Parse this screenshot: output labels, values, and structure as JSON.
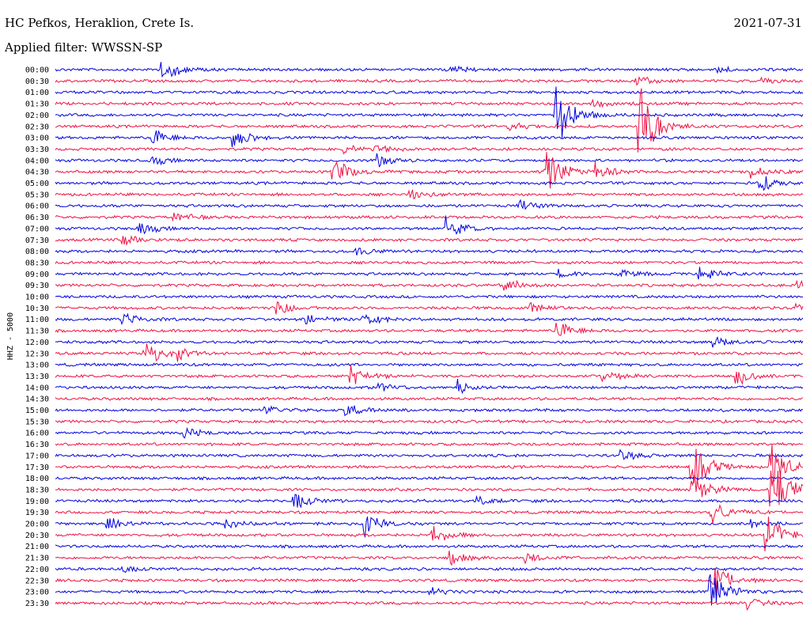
{
  "header": {
    "station": "HC Pefkos, Heraklion, Crete Is.",
    "date": "2021-07-31",
    "filter": "Applied filter: WWSSN-SP"
  },
  "chart_data": {
    "type": "line",
    "ylabel": "HHZ - 5000",
    "row_labels": [
      "00:00",
      "00:30",
      "01:00",
      "01:30",
      "02:00",
      "02:30",
      "03:00",
      "03:30",
      "04:00",
      "04:30",
      "05:00",
      "05:30",
      "06:00",
      "06:30",
      "07:00",
      "07:30",
      "08:00",
      "08:30",
      "09:00",
      "09:30",
      "10:00",
      "10:30",
      "11:00",
      "11:30",
      "12:00",
      "12:30",
      "13:00",
      "13:30",
      "14:00",
      "14:30",
      "15:00",
      "15:30",
      "16:00",
      "16:30",
      "17:00",
      "17:30",
      "18:00",
      "18:30",
      "19:00",
      "19:30",
      "20:00",
      "20:30",
      "21:00",
      "21:30",
      "22:00",
      "22:30",
      "23:00",
      "23:30"
    ],
    "colors": {
      "even": "#0000dd",
      "odd": "#ee1144"
    },
    "events": [
      {
        "row": 0,
        "x": 0.142,
        "amp": 18
      },
      {
        "row": 0,
        "x": 0.53,
        "amp": 6
      },
      {
        "row": 0,
        "x": 0.885,
        "amp": 5
      },
      {
        "row": 1,
        "x": 0.775,
        "amp": 8
      },
      {
        "row": 1,
        "x": 0.945,
        "amp": 4
      },
      {
        "row": 3,
        "x": 0.718,
        "amp": 6
      },
      {
        "row": 4,
        "x": 0.667,
        "amp": 60
      },
      {
        "row": 5,
        "x": 0.604,
        "amp": 6
      },
      {
        "row": 5,
        "x": 0.78,
        "amp": 58
      },
      {
        "row": 6,
        "x": 0.13,
        "amp": 12
      },
      {
        "row": 6,
        "x": 0.238,
        "amp": 16
      },
      {
        "row": 7,
        "x": 0.386,
        "amp": 5
      },
      {
        "row": 7,
        "x": 0.428,
        "amp": 6
      },
      {
        "row": 8,
        "x": 0.13,
        "amp": 6
      },
      {
        "row": 8,
        "x": 0.43,
        "amp": 10
      },
      {
        "row": 9,
        "x": 0.37,
        "amp": 22
      },
      {
        "row": 9,
        "x": 0.655,
        "amp": 40
      },
      {
        "row": 9,
        "x": 0.722,
        "amp": 12
      },
      {
        "row": 9,
        "x": 0.93,
        "amp": 8
      },
      {
        "row": 10,
        "x": 0.942,
        "amp": 12
      },
      {
        "row": 11,
        "x": 0.472,
        "amp": 10
      },
      {
        "row": 12,
        "x": 0.62,
        "amp": 8
      },
      {
        "row": 13,
        "x": 0.158,
        "amp": 8
      },
      {
        "row": 14,
        "x": 0.11,
        "amp": 10
      },
      {
        "row": 14,
        "x": 0.523,
        "amp": 16
      },
      {
        "row": 15,
        "x": 0.09,
        "amp": 8
      },
      {
        "row": 16,
        "x": 0.403,
        "amp": 6
      },
      {
        "row": 18,
        "x": 0.674,
        "amp": 5
      },
      {
        "row": 18,
        "x": 0.752,
        "amp": 8
      },
      {
        "row": 18,
        "x": 0.86,
        "amp": 14
      },
      {
        "row": 19,
        "x": 0.6,
        "amp": 10
      },
      {
        "row": 19,
        "x": 0.99,
        "amp": 6
      },
      {
        "row": 21,
        "x": 0.296,
        "amp": 10
      },
      {
        "row": 21,
        "x": 0.636,
        "amp": 8
      },
      {
        "row": 21,
        "x": 0.99,
        "amp": 8
      },
      {
        "row": 22,
        "x": 0.09,
        "amp": 10
      },
      {
        "row": 22,
        "x": 0.335,
        "amp": 8
      },
      {
        "row": 22,
        "x": 0.412,
        "amp": 9
      },
      {
        "row": 23,
        "x": 0.67,
        "amp": 14
      },
      {
        "row": 24,
        "x": 0.88,
        "amp": 8
      },
      {
        "row": 25,
        "x": 0.118,
        "amp": 22
      },
      {
        "row": 25,
        "x": 0.165,
        "amp": 10
      },
      {
        "row": 27,
        "x": 0.395,
        "amp": 14
      },
      {
        "row": 27,
        "x": 0.73,
        "amp": 9
      },
      {
        "row": 27,
        "x": 0.91,
        "amp": 14
      },
      {
        "row": 28,
        "x": 0.43,
        "amp": 8
      },
      {
        "row": 28,
        "x": 0.538,
        "amp": 12
      },
      {
        "row": 30,
        "x": 0.28,
        "amp": 8
      },
      {
        "row": 30,
        "x": 0.388,
        "amp": 8
      },
      {
        "row": 32,
        "x": 0.172,
        "amp": 8
      },
      {
        "row": 34,
        "x": 0.755,
        "amp": 8
      },
      {
        "row": 35,
        "x": 0.85,
        "amp": 40
      },
      {
        "row": 35,
        "x": 0.955,
        "amp": 40
      },
      {
        "row": 37,
        "x": 0.85,
        "amp": 26
      },
      {
        "row": 37,
        "x": 0.955,
        "amp": 60
      },
      {
        "row": 38,
        "x": 0.318,
        "amp": 14
      },
      {
        "row": 38,
        "x": 0.56,
        "amp": 6
      },
      {
        "row": 39,
        "x": 0.875,
        "amp": 24
      },
      {
        "row": 40,
        "x": 0.07,
        "amp": 12
      },
      {
        "row": 40,
        "x": 0.228,
        "amp": 6
      },
      {
        "row": 40,
        "x": 0.413,
        "amp": 22
      },
      {
        "row": 40,
        "x": 0.93,
        "amp": 6
      },
      {
        "row": 41,
        "x": 0.5,
        "amp": 16
      },
      {
        "row": 41,
        "x": 0.95,
        "amp": 30
      },
      {
        "row": 43,
        "x": 0.527,
        "amp": 10
      },
      {
        "row": 43,
        "x": 0.626,
        "amp": 10
      },
      {
        "row": 44,
        "x": 0.09,
        "amp": 4
      },
      {
        "row": 45,
        "x": 0.88,
        "amp": 26
      },
      {
        "row": 46,
        "x": 0.5,
        "amp": 6
      },
      {
        "row": 46,
        "x": 0.875,
        "amp": 30
      },
      {
        "row": 47,
        "x": 0.925,
        "amp": 8
      }
    ]
  }
}
